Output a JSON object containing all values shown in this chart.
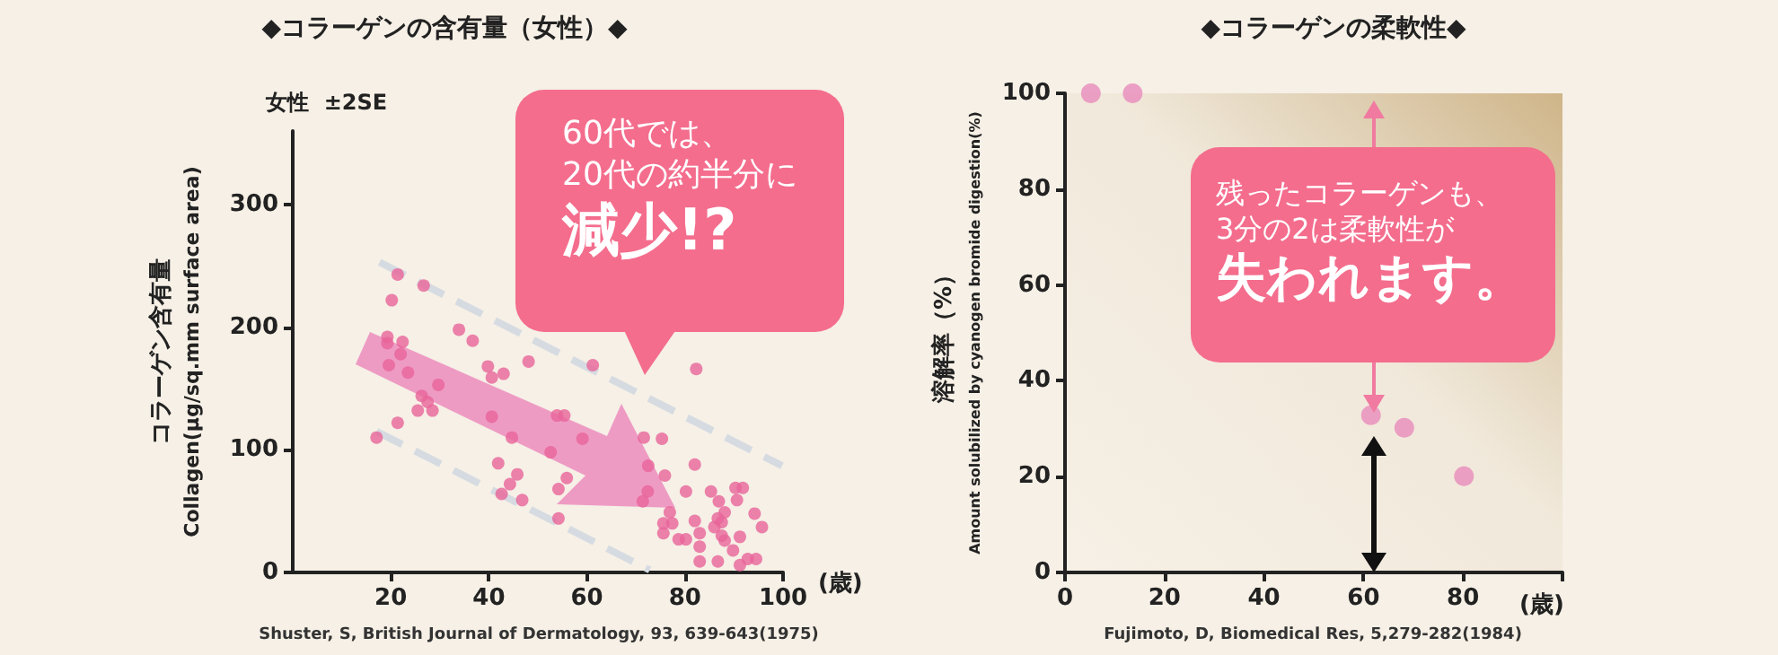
{
  "chart_data": [
    {
      "type": "scatter",
      "title": "◆コラーゲンの含有量（女性）◆",
      "subtitle": "女性  ±2SE",
      "xlabel": "(歳)",
      "ylabel": "コラーゲン含有量\nCollagen(μg/sq.mm surface area)",
      "annotations": [
        "60代では、",
        "20代の約半分に",
        "減少!?",
        "Shuster, S, British Journal of Dermatology, 93, 639-643(1975)"
      ],
      "xlim": [
        0,
        100
      ],
      "xticks": [
        20,
        40,
        60,
        80,
        100
      ],
      "ylim": [
        0,
        360
      ],
      "yticks": [
        0,
        100,
        200,
        300
      ],
      "grid": false,
      "marker": "circle",
      "series": [
        {
          "color": "#e8649a",
          "x": [
            21.4,
            26.7,
            20.2,
            19.3,
            19.3,
            22.4,
            22,
            19.6,
            23.5,
            29.7,
            26.3,
            27.5,
            25.5,
            28.5,
            21.4,
            17.1,
            33.9,
            36.7,
            39.8,
            40.6,
            43,
            48.1,
            40.6,
            44.7,
            41.9,
            45.8,
            44.3,
            42.6,
            46.8,
            53.9,
            55.4,
            59.1,
            61.2,
            52.6,
            55.9,
            54.2,
            54.2,
            71.6,
            75.3,
            72.5,
            75.9,
            72.4,
            71.4,
            82.3,
            82,
            80.2,
            76.9,
            75.6,
            77.4,
            75.6,
            78.7,
            80.2,
            82,
            83,
            83,
            83,
            85.3,
            86.9,
            88.1,
            86.7,
            86,
            87.5,
            87.5,
            88.1,
            86.7,
            90.3,
            91.8,
            90.6,
            91.2,
            89.8,
            91.2,
            94.2,
            95.7,
            92.8,
            94.5
          ],
          "values": [
            243,
            234,
            222,
            192,
            187,
            188,
            178,
            169,
            163,
            153,
            144,
            139,
            132,
            132,
            122,
            110,
            198,
            189,
            168,
            159,
            162,
            172,
            127,
            110,
            89,
            80,
            72,
            64,
            59,
            128,
            128,
            109,
            169,
            98,
            77,
            68,
            44,
            110,
            109,
            87,
            79,
            66,
            58,
            166,
            88,
            66,
            49,
            40,
            40,
            32,
            27,
            27,
            42,
            32,
            21,
            9,
            66,
            58,
            49,
            44,
            37,
            41,
            30,
            26,
            9,
            69,
            69,
            59,
            29,
            18,
            6,
            48,
            37,
            11,
            11
          ]
        },
        {
          "type": "line",
          "color": "#d6dbe2",
          "line_style": "dashed",
          "marker": "none",
          "x": [
            17.7,
            99.8
          ],
          "values": [
            253,
            87
          ]
        },
        {
          "type": "line",
          "color": "#d6dbe2",
          "line_style": "dashed",
          "marker": "none",
          "x": [
            17.1,
            72.8
          ],
          "values": [
            115,
            2
          ]
        }
      ]
    },
    {
      "type": "scatter",
      "title": "◆コラーゲンの柔軟性◆",
      "xlabel": "(歳)",
      "ylabel": "溶解率（%）\nAmount solubilized by cyanogen bromide digestion(%)",
      "annotations": [
        "残ったコラーゲンも、",
        "3分の2は柔軟性が",
        "失われます。",
        "Fujimoto, D, Biomedical Res, 5,279-282(1984)"
      ],
      "xlim": [
        0,
        100
      ],
      "xticks": [
        0,
        20,
        40,
        60,
        80,
        {
          "value": 100,
          "label": null
        }
      ],
      "ylim": [
        0,
        100
      ],
      "yticks": [
        0,
        20,
        40,
        60,
        80,
        100
      ],
      "grid": false,
      "marker": "circle",
      "series": [
        {
          "color": "#e98bbc",
          "x": [
            5.2,
            13.6,
            61.5,
            68.2,
            80.2
          ],
          "values": [
            100,
            100,
            32.8,
            30.2,
            20.1
          ]
        }
      ]
    }
  ]
}
